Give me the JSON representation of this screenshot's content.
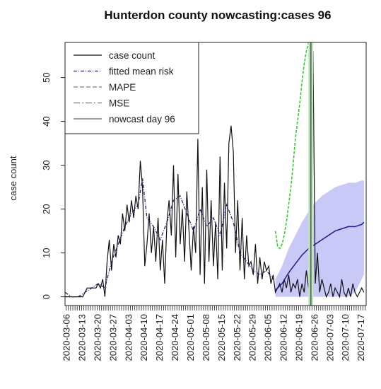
{
  "chart_data": {
    "type": "line",
    "title": "Hunterdon county nowcasting:cases 96",
    "xlabel": "",
    "ylabel": "case count",
    "ylim": [
      -2,
      58
    ],
    "yticks": [
      0,
      10,
      20,
      30,
      40,
      50
    ],
    "x_start": "2020-03-06",
    "x_end": "2020-07-20",
    "xtick_labels": [
      "2020-03-06",
      "2020-03-13",
      "2020-03-20",
      "2020-03-27",
      "2020-04-03",
      "2020-04-10",
      "2020-04-17",
      "2020-04-24",
      "2020-05-01",
      "2020-05-08",
      "2020-05-15",
      "2020-05-22",
      "2020-05-29",
      "2020-06-05",
      "2020-06-12",
      "2020-06-19",
      "2020-06-26",
      "2020-07-03",
      "2020-07-10",
      "2020-07-17"
    ],
    "legend": {
      "position": "top-left",
      "entries": [
        "case count",
        "fitted mean risk",
        "MAPE",
        "MSE",
        "nowcast day 96"
      ]
    },
    "colors": {
      "case_count": "#111111",
      "fitted_mean_risk": "#22226b",
      "mape": "#33cc33",
      "mse": "#7a7a7a",
      "nowcast": "#666666",
      "band_fill": "#b7b7f5",
      "mean_line": "#1a1a8c"
    },
    "series": [
      {
        "name": "case count",
        "x": [
          "2020-03-06",
          "2020-03-07",
          "2020-03-08",
          "2020-03-09",
          "2020-03-10",
          "2020-03-11",
          "2020-03-12",
          "2020-03-13",
          "2020-03-14",
          "2020-03-15",
          "2020-03-16",
          "2020-03-17",
          "2020-03-18",
          "2020-03-19",
          "2020-03-20",
          "2020-03-21",
          "2020-03-22",
          "2020-03-23",
          "2020-03-24",
          "2020-03-25",
          "2020-03-26",
          "2020-03-27",
          "2020-03-28",
          "2020-03-29",
          "2020-03-30",
          "2020-03-31",
          "2020-04-01",
          "2020-04-02",
          "2020-04-03",
          "2020-04-04",
          "2020-04-05",
          "2020-04-06",
          "2020-04-07",
          "2020-04-08",
          "2020-04-09",
          "2020-04-10",
          "2020-04-11",
          "2020-04-12",
          "2020-04-13",
          "2020-04-14",
          "2020-04-15",
          "2020-04-16",
          "2020-04-17",
          "2020-04-18",
          "2020-04-19",
          "2020-04-20",
          "2020-04-21",
          "2020-04-22",
          "2020-04-23",
          "2020-04-24",
          "2020-04-25",
          "2020-04-26",
          "2020-04-27",
          "2020-04-28",
          "2020-04-29",
          "2020-04-30",
          "2020-05-01",
          "2020-05-02",
          "2020-05-03",
          "2020-05-04",
          "2020-05-05",
          "2020-05-06",
          "2020-05-07",
          "2020-05-08",
          "2020-05-09",
          "2020-05-10",
          "2020-05-11",
          "2020-05-12",
          "2020-05-13",
          "2020-05-14",
          "2020-05-15",
          "2020-05-16",
          "2020-05-17",
          "2020-05-18",
          "2020-05-19",
          "2020-05-20",
          "2020-05-21",
          "2020-05-22",
          "2020-05-23",
          "2020-05-24",
          "2020-05-25",
          "2020-05-26",
          "2020-05-27",
          "2020-05-28",
          "2020-05-29",
          "2020-05-30",
          "2020-05-31",
          "2020-06-01",
          "2020-06-02",
          "2020-06-03",
          "2020-06-04",
          "2020-06-05",
          "2020-06-06",
          "2020-06-07",
          "2020-06-08",
          "2020-06-09",
          "2020-06-10",
          "2020-06-11",
          "2020-06-12",
          "2020-06-13",
          "2020-06-14",
          "2020-06-15",
          "2020-06-16",
          "2020-06-17",
          "2020-06-18",
          "2020-06-19",
          "2020-06-20",
          "2020-06-21",
          "2020-06-22",
          "2020-06-23",
          "2020-06-24",
          "2020-06-25",
          "2020-06-26",
          "2020-06-27",
          "2020-06-28",
          "2020-06-29",
          "2020-06-30",
          "2020-07-01",
          "2020-07-02",
          "2020-07-03",
          "2020-07-04",
          "2020-07-05",
          "2020-07-06",
          "2020-07-07",
          "2020-07-08",
          "2020-07-09",
          "2020-07-10",
          "2020-07-11",
          "2020-07-12",
          "2020-07-13",
          "2020-07-14",
          "2020-07-15",
          "2020-07-16",
          "2020-07-17",
          "2020-07-18",
          "2020-07-19"
        ],
        "values": [
          0,
          0,
          0,
          0,
          0,
          0,
          0,
          0,
          0,
          1,
          2,
          2,
          2,
          2,
          2,
          3,
          2,
          4,
          0,
          8,
          13,
          6,
          12,
          9,
          14,
          12,
          19,
          15,
          21,
          17,
          22,
          18,
          23,
          20,
          31,
          25,
          7,
          12,
          19,
          10,
          16,
          8,
          18,
          6,
          13,
          3,
          17,
          22,
          14,
          30,
          9,
          28,
          12,
          20,
          8,
          24,
          15,
          6,
          16,
          10,
          36,
          5,
          25,
          3,
          29,
          8,
          22,
          7,
          17,
          4,
          32,
          6,
          26,
          11,
          35,
          39,
          33,
          10,
          22,
          6,
          18,
          4,
          14,
          7,
          8,
          5,
          12,
          3,
          9,
          4,
          8,
          6,
          7,
          3,
          5,
          1,
          2,
          3,
          1,
          4,
          2,
          5,
          1,
          3,
          2,
          4,
          0,
          3,
          1,
          6,
          2,
          4,
          56,
          3,
          10,
          1,
          4,
          2,
          0,
          1,
          3,
          0,
          2,
          1,
          0,
          4,
          1,
          0,
          2,
          0,
          3,
          1,
          0,
          1,
          2,
          1
        ]
      },
      {
        "name": "fitted mean risk",
        "x": [
          "2020-03-06",
          "2020-03-09",
          "2020-03-12",
          "2020-03-15",
          "2020-03-18",
          "2020-03-21",
          "2020-03-24",
          "2020-03-27",
          "2020-03-30",
          "2020-04-02",
          "2020-04-05",
          "2020-04-08",
          "2020-04-10",
          "2020-04-12",
          "2020-04-15",
          "2020-04-18",
          "2020-04-21",
          "2020-04-24",
          "2020-04-27",
          "2020-04-30",
          "2020-05-03",
          "2020-05-06",
          "2020-05-09",
          "2020-05-12",
          "2020-05-15",
          "2020-05-18",
          "2020-05-21",
          "2020-05-24",
          "2020-05-27",
          "2020-05-30",
          "2020-06-02",
          "2020-06-05",
          "2020-06-08"
        ],
        "values": [
          1,
          0,
          0,
          1,
          2,
          3,
          2,
          8,
          12,
          16,
          19,
          21,
          27,
          18,
          16,
          13,
          17,
          22,
          23,
          19,
          15,
          20,
          16,
          18,
          14,
          21,
          17,
          10,
          8,
          6,
          5,
          6,
          4
        ]
      }
    ],
    "nowcast": {
      "name": "nowcast day 96",
      "x": [
        "2020-06-09",
        "2020-06-12",
        "2020-06-15",
        "2020-06-18",
        "2020-06-21",
        "2020-06-24",
        "2020-06-27",
        "2020-06-30",
        "2020-07-03",
        "2020-07-06",
        "2020-07-09",
        "2020-07-12",
        "2020-07-15",
        "2020-07-18",
        "2020-07-19"
      ],
      "mean": [
        1.5,
        3,
        5.5,
        7.5,
        9.5,
        11,
        12,
        13,
        14,
        15,
        15.5,
        16,
        16,
        16.5,
        17
      ],
      "lower": [
        0,
        0,
        0,
        0,
        0,
        0,
        0,
        0,
        0,
        0,
        0,
        0,
        1,
        4,
        5
      ],
      "upper": [
        4,
        7,
        11,
        14,
        17,
        19.5,
        21.5,
        23,
        24,
        25,
        25.5,
        26,
        26,
        26.5,
        26.5
      ]
    },
    "mape_curve": {
      "name": "MAPE",
      "x": [
        "2020-06-09",
        "2020-06-10",
        "2020-06-11",
        "2020-06-12",
        "2020-06-13",
        "2020-06-14",
        "2020-06-15",
        "2020-06-16",
        "2020-06-17",
        "2020-06-18",
        "2020-06-19",
        "2020-06-20",
        "2020-06-21",
        "2020-06-22",
        "2020-06-23",
        "2020-06-24",
        "2020-06-25",
        "2020-06-26"
      ],
      "values": [
        15,
        11.5,
        11,
        12,
        14,
        17,
        21,
        25,
        30,
        36,
        40,
        44,
        49,
        53,
        56,
        58,
        58,
        58
      ]
    }
  }
}
